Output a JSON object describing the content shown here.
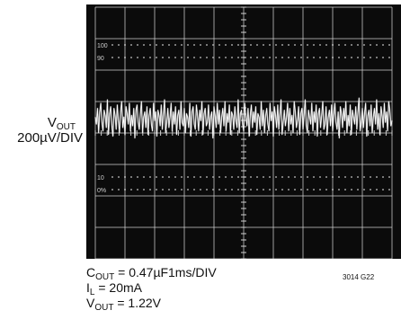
{
  "chart_data": {
    "type": "line",
    "title": "",
    "ylabel": {
      "main": "V",
      "sub": "OUT",
      "scale": "200µV/DIV"
    },
    "xlabel": "1ms/DIV",
    "grid": true,
    "screen_markers": [
      "100",
      "90",
      "10",
      "0%"
    ],
    "series": [
      {
        "values": [
          0.1,
          -0.3,
          0.6,
          -0.8,
          0.4,
          0.9,
          -0.2,
          -0.7,
          0.5,
          0.2,
          -0.5,
          1.1,
          -0.9,
          0.3,
          0.7,
          -0.4,
          -1.0,
          0.6,
          0.2,
          -0.6,
          0.8,
          -0.1,
          -0.8,
          0.4,
          1.0,
          -0.5,
          0.1,
          -0.9,
          0.7,
          0.3,
          -0.3,
          0.9,
          -0.7,
          0.2,
          -0.4,
          0.6,
          -1.1,
          0.5,
          0.8,
          -0.2,
          -0.6,
          0.3,
          1.0,
          -0.8,
          0.1,
          0.4,
          -0.5,
          0.7,
          -0.9,
          0.2,
          0.6,
          -0.3,
          -0.7,
          0.9,
          -0.1,
          0.4,
          -1.0,
          0.5,
          0.2,
          -0.4,
          0.8,
          -0.6,
          0.3,
          1.1,
          -0.8,
          -0.2,
          0.6,
          -0.5,
          0.1,
          0.9,
          -0.7,
          0.4,
          -0.3,
          0.7,
          -0.9,
          0.2,
          0.5,
          -0.6,
          1.0,
          -0.2,
          -0.4,
          0.6,
          -0.8,
          0.3,
          0.1,
          -0.5,
          0.9,
          -1.0,
          0.4,
          0.7,
          -0.3,
          -0.6,
          0.8,
          0.2,
          -0.7,
          0.5,
          -0.1,
          1.0,
          -0.9,
          0.3,
          0.6,
          -0.4,
          -0.2,
          0.8,
          -0.6,
          0.1,
          0.4,
          -1.1,
          0.7,
          0.2,
          -0.5,
          0.9,
          -0.3,
          0.5,
          -0.8,
          0.1,
          0.6,
          -0.4,
          1.0,
          -0.7,
          0.3,
          -0.2,
          0.8,
          -0.9,
          0.4,
          0.2,
          -0.6,
          0.7,
          -0.1,
          -0.5,
          1.1,
          -0.8,
          0.3,
          0.5,
          -0.3,
          -0.7,
          0.9,
          0.1,
          -0.4,
          0.6,
          -1.0,
          0.2,
          0.8,
          -0.5,
          0.4,
          -0.2,
          0.7,
          -0.9,
          0.3,
          0.1,
          -0.6,
          1.0,
          -0.4,
          0.5,
          -0.8,
          0.2,
          0.6,
          -0.3,
          -0.7,
          0.9,
          -0.1,
          0.4,
          -1.0,
          0.7,
          0.2,
          -0.5,
          0.8,
          -0.6,
          0.3,
          1.1,
          -0.9,
          -0.2,
          0.5,
          -0.4,
          0.1,
          0.9,
          -0.7,
          0.6,
          -0.3,
          0.2,
          -0.8,
          1.0,
          0.4,
          -0.5,
          -0.1,
          0.7,
          -0.9,
          0.3,
          0.6,
          -0.6,
          0.2,
          1.1,
          -0.4,
          -0.8,
          0.5,
          0.1,
          -0.3,
          0.9,
          -0.7,
          0.4,
          -0.2,
          0.8,
          -1.0,
          0.3,
          0.6,
          -0.5,
          0.2,
          1.0,
          -0.6,
          -0.3,
          0.7,
          -0.9,
          0.1,
          0.5,
          -0.4,
          0.8,
          -0.7,
          0.2,
          0.9,
          -0.2,
          -0.6,
          0.4,
          -1.1,
          0.7,
          0.3,
          -0.5,
          0.6,
          -0.1,
          1.0,
          -0.8,
          0.2,
          -0.4,
          0.8,
          -0.9,
          0.5,
          0.1,
          -0.3,
          0.7,
          -0.6,
          0.4,
          1.2,
          -0.7,
          -0.2,
          0.6,
          -0.5,
          0.3,
          0.9,
          -1.0,
          0.2,
          0.5,
          -0.4,
          0.8,
          -0.8,
          0.1,
          0.6,
          -0.3,
          1.1,
          -0.6,
          0.3,
          -0.9,
          0.7,
          0.2,
          -0.5,
          0.9,
          -0.2,
          0.4,
          -0.7,
          1.0,
          0.5,
          -0.4,
          -0.1
        ]
      }
    ],
    "trace_color": "#e8e8e8",
    "background_color": "#0b0b0b",
    "grid_color": "#cfcfcf"
  },
  "conditions": {
    "cout": {
      "main": "C",
      "sub": "OUT",
      "value": " = 0.47µF"
    },
    "il": {
      "main": "I",
      "sub": "L",
      "value": " = 20mA"
    },
    "vout": {
      "main": "V",
      "sub": "OUT",
      "value": " = 1.22V"
    }
  },
  "figure_id": "3014 G22"
}
